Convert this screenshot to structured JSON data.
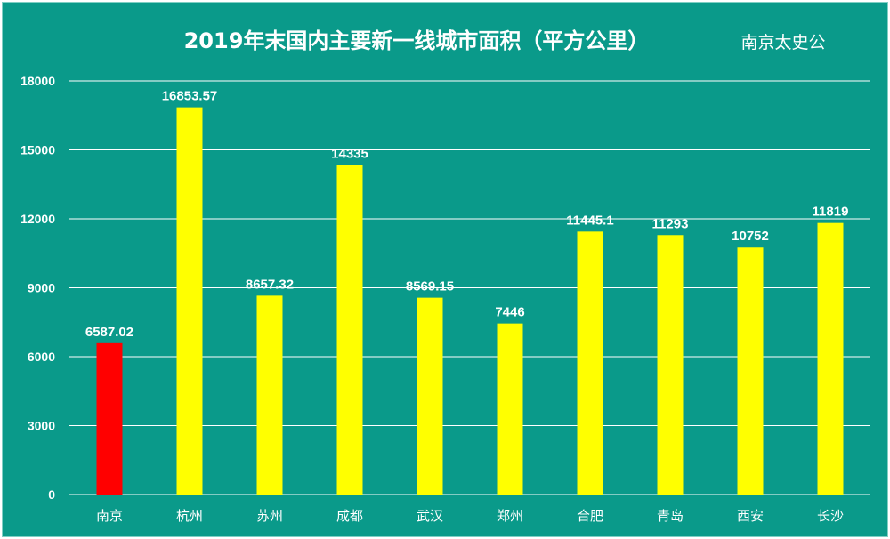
{
  "chart_data": {
    "type": "bar",
    "title": "2019年末国内主要新一线城市面积（平方公里）",
    "watermark": "南京太史公",
    "categories": [
      "南京",
      "杭州",
      "苏州",
      "成都",
      "武汉",
      "郑州",
      "合肥",
      "青岛",
      "西安",
      "长沙"
    ],
    "values": [
      6587.02,
      16853.57,
      8657.32,
      14335,
      8569.15,
      7446,
      11445.1,
      11293,
      10752,
      11819
    ],
    "value_labels": [
      "6587.02",
      "16853.57",
      "8657.32",
      "14335",
      "8569.15",
      "7446",
      "11445.1",
      "11293",
      "10752",
      "11819"
    ],
    "bar_colors": [
      "#ff0000",
      "#ffff00",
      "#ffff00",
      "#ffff00",
      "#ffff00",
      "#ffff00",
      "#ffff00",
      "#ffff00",
      "#ffff00",
      "#ffff00"
    ],
    "ylim": [
      0,
      18000
    ],
    "yticks": [
      0,
      3000,
      6000,
      9000,
      12000,
      15000,
      18000
    ],
    "xlabel": "",
    "ylabel": "",
    "grid": true,
    "legend": "none",
    "background_color": "#0a9a8a",
    "grid_color": "#ffffff",
    "text_color": "#ffffff"
  }
}
